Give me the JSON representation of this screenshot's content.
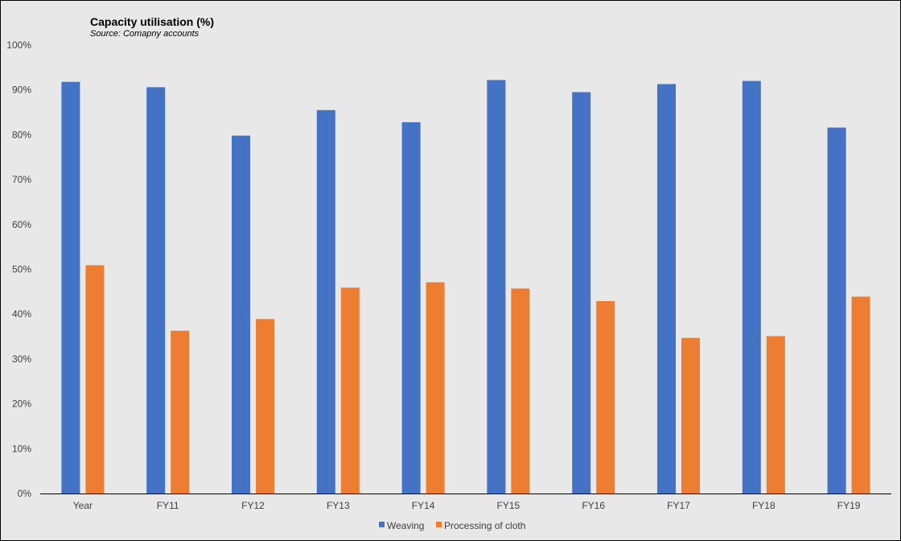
{
  "chart_data": {
    "type": "bar",
    "title": "Capacity utilisation (%)",
    "subtitle": "Source: Comapny accounts",
    "categories": [
      "Year",
      "FY11",
      "FY12",
      "FY13",
      "FY14",
      "FY15",
      "FY16",
      "FY17",
      "FY18",
      "FY19"
    ],
    "series": [
      {
        "name": "Weaving",
        "color": "#4472c4",
        "values": [
          91.8,
          90.6,
          79.8,
          85.5,
          82.8,
          92.2,
          89.5,
          91.3,
          92.0,
          81.6
        ]
      },
      {
        "name": "Processing of cloth",
        "color": "#ed7d31",
        "values": [
          50.9,
          36.3,
          38.9,
          45.9,
          47.1,
          45.7,
          42.9,
          34.7,
          35.1,
          43.9
        ]
      }
    ],
    "ylim": [
      0,
      100
    ],
    "yticks": [
      "0%",
      "10%",
      "20%",
      "30%",
      "40%",
      "50%",
      "60%",
      "70%",
      "80%",
      "90%",
      "100%"
    ],
    "xlabel": "",
    "ylabel": "",
    "grid": false,
    "legend": "bottom-center"
  }
}
